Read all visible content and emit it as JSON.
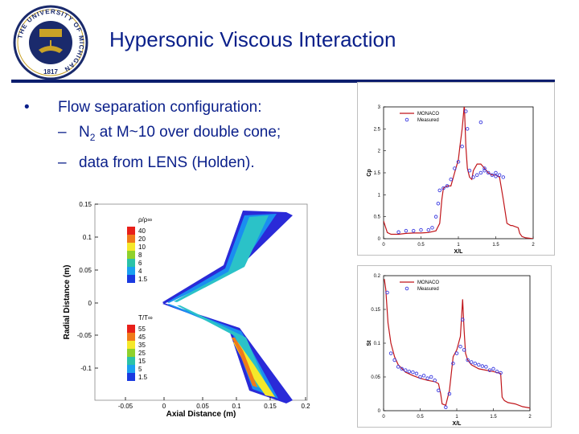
{
  "slide": {
    "title": "Hypersonic Viscous Interaction",
    "bullet_mark": "•",
    "bullet": "Flow separation configuration:",
    "sub_dash": "–",
    "sub1_pre": "N",
    "sub1_sub": "2",
    "sub1_post": " at M~10 over double cone;",
    "sub2": "data from LENS (Holden)."
  },
  "seal": {
    "ring_text": "THE UNIVERSITY OF MICHIGAN",
    "year": "1817",
    "colors": {
      "navy": "#1a2a6c",
      "gold": "#c9a227"
    }
  },
  "contour": {
    "xlabel": "Axial Distance (m)",
    "ylabel": "Radial Distance (m)",
    "xticks": [
      "-0.05",
      "0",
      "0.05",
      "0.1",
      "0.15",
      "0.2"
    ],
    "yticks": [
      "0.15",
      "0.1",
      "0.05",
      "0",
      "-0.05",
      "-0.1"
    ],
    "legend_density_title": "ρ/ρ∞",
    "legend_density": [
      "40",
      "20",
      "10",
      "8",
      "6",
      "4",
      "1.5"
    ],
    "legend_temp_title": "T/T∞",
    "legend_temp": [
      "55",
      "45",
      "35",
      "25",
      "15",
      "5",
      "1.5"
    ],
    "legend_colors": [
      "#e8201a",
      "#f07a1a",
      "#f5e82a",
      "#8fd12b",
      "#2bc2a8",
      "#1aa0f0",
      "#1a3ae0"
    ]
  },
  "chart_data": [
    {
      "type": "line",
      "title": "",
      "xlabel": "X/L",
      "ylabel": "Cp",
      "xlim": [
        0,
        2
      ],
      "ylim": [
        0,
        3
      ],
      "xticks": [
        "0",
        "0.5",
        "1",
        "1.5",
        "2"
      ],
      "yticks": [
        "0",
        "0.5",
        "1",
        "1.5",
        "2",
        "2.5",
        "3"
      ],
      "legend_position": "top",
      "series": [
        {
          "name": "MONACO",
          "style": "line",
          "color": "#c0151a",
          "x": [
            0.0,
            0.05,
            0.1,
            0.2,
            0.3,
            0.4,
            0.5,
            0.6,
            0.7,
            0.75,
            0.78,
            0.8,
            0.85,
            0.9,
            0.95,
            1.0,
            1.02,
            1.05,
            1.08,
            1.1,
            1.12,
            1.15,
            1.18,
            1.2,
            1.25,
            1.3,
            1.35,
            1.4,
            1.45,
            1.5,
            1.55,
            1.6,
            1.65,
            1.7,
            1.72,
            1.75,
            1.8,
            1.82,
            1.85,
            1.9,
            2.0
          ],
          "y": [
            0.4,
            0.14,
            0.1,
            0.1,
            0.12,
            0.13,
            0.13,
            0.14,
            0.18,
            0.35,
            0.9,
            1.15,
            1.2,
            1.2,
            1.5,
            1.8,
            2.1,
            2.5,
            3.05,
            2.1,
            1.6,
            1.4,
            1.35,
            1.55,
            1.7,
            1.7,
            1.6,
            1.5,
            1.45,
            1.45,
            1.4,
            0.9,
            0.35,
            0.3,
            0.3,
            0.28,
            0.25,
            0.12,
            0.05,
            0.02,
            0.0
          ]
        },
        {
          "name": "Measured",
          "style": "markers",
          "color": "#3a3ae0",
          "x": [
            0.2,
            0.3,
            0.4,
            0.5,
            0.6,
            0.65,
            0.7,
            0.73,
            0.75,
            0.8,
            0.85,
            0.9,
            0.95,
            1.0,
            1.05,
            1.1,
            1.12,
            1.15,
            1.2,
            1.25,
            1.3,
            1.35,
            1.4,
            1.45,
            1.5,
            1.55,
            1.6,
            1.3,
            1.35,
            1.5
          ],
          "y": [
            0.15,
            0.18,
            0.18,
            0.2,
            0.2,
            0.25,
            0.5,
            0.8,
            1.1,
            1.15,
            1.2,
            1.35,
            1.6,
            1.75,
            2.1,
            2.9,
            2.5,
            1.55,
            1.4,
            1.45,
            1.5,
            1.6,
            1.5,
            1.45,
            1.5,
            1.45,
            1.4,
            2.65,
            1.55,
            1.42
          ]
        }
      ]
    },
    {
      "type": "line",
      "title": "",
      "xlabel": "X/L",
      "ylabel": "St",
      "xlim": [
        0,
        2
      ],
      "ylim": [
        0,
        0.2
      ],
      "xticks": [
        "0",
        "0.5",
        "1",
        "1.5",
        "2"
      ],
      "yticks": [
        "0",
        "0.05",
        "0.1",
        "0.15",
        "0.2"
      ],
      "legend_position": "top",
      "series": [
        {
          "name": "MONACO",
          "style": "line",
          "color": "#c0151a",
          "x": [
            0.01,
            0.03,
            0.06,
            0.1,
            0.15,
            0.2,
            0.3,
            0.4,
            0.5,
            0.6,
            0.7,
            0.75,
            0.78,
            0.8,
            0.85,
            0.9,
            0.95,
            1.0,
            1.05,
            1.08,
            1.1,
            1.12,
            1.15,
            1.2,
            1.3,
            1.4,
            1.5,
            1.6,
            1.62,
            1.65,
            1.7,
            1.8,
            1.9,
            2.0
          ],
          "y": [
            0.195,
            0.18,
            0.13,
            0.1,
            0.08,
            0.068,
            0.057,
            0.052,
            0.048,
            0.045,
            0.043,
            0.04,
            0.025,
            0.01,
            0.008,
            0.03,
            0.08,
            0.09,
            0.11,
            0.165,
            0.12,
            0.085,
            0.075,
            0.068,
            0.062,
            0.06,
            0.058,
            0.055,
            0.02,
            0.015,
            0.012,
            0.01,
            0.006,
            0.004
          ]
        },
        {
          "name": "Measured",
          "style": "markers",
          "color": "#3a3ae0",
          "x": [
            0.05,
            0.1,
            0.15,
            0.2,
            0.25,
            0.3,
            0.35,
            0.4,
            0.45,
            0.5,
            0.55,
            0.6,
            0.65,
            0.7,
            0.75,
            0.85,
            0.9,
            0.95,
            1.0,
            1.05,
            1.08,
            1.1,
            1.15,
            1.2,
            1.25,
            1.3,
            1.35,
            1.4,
            1.45,
            1.5,
            1.55,
            1.6
          ],
          "y": [
            0.175,
            0.085,
            0.075,
            0.065,
            0.062,
            0.06,
            0.058,
            0.057,
            0.055,
            0.05,
            0.052,
            0.048,
            0.05,
            0.045,
            0.03,
            0.005,
            0.025,
            0.07,
            0.085,
            0.095,
            0.135,
            0.09,
            0.075,
            0.072,
            0.07,
            0.068,
            0.066,
            0.065,
            0.06,
            0.062,
            0.058,
            0.056
          ]
        }
      ]
    }
  ]
}
